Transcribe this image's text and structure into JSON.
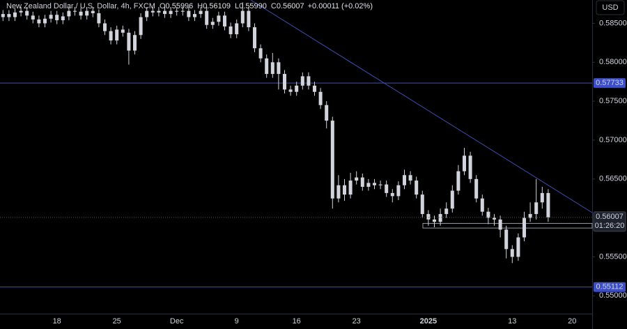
{
  "chart_data": {
    "type": "candlestick",
    "symbol": "New Zealand Dollar / U.S. Dollar, 4h, FXCM",
    "ohlc_legend": [
      {
        "key": "O",
        "value": "0.55996"
      },
      {
        "key": "H",
        "value": "0.56109"
      },
      {
        "key": "L",
        "value": "0.55990"
      },
      {
        "key": "C",
        "value": "0.56007"
      }
    ],
    "change": "+0.00011 (+0.02%)",
    "currency": "USD",
    "color": "#d1d4dc",
    "categories": [
      null,
      null,
      null,
      null,
      null,
      null,
      null,
      null,
      null,
      "18",
      null,
      null,
      null,
      null,
      null,
      null,
      null,
      null,
      null,
      "25",
      null,
      null,
      null,
      null,
      null,
      null,
      null,
      null,
      null,
      "Dec",
      null,
      null,
      null,
      null,
      null,
      null,
      null,
      null,
      null,
      "9",
      null,
      null,
      null,
      null,
      null,
      null,
      null,
      null,
      null,
      "16",
      null,
      null,
      null,
      null,
      null,
      null,
      null,
      null,
      null,
      "23",
      null,
      null,
      null,
      null,
      null,
      null,
      null,
      null,
      null,
      null,
      null,
      "2025",
      null,
      null,
      null,
      null,
      null,
      null,
      null,
      null,
      null,
      null,
      null,
      null,
      null,
      "13",
      null,
      null,
      null,
      null,
      null,
      null,
      null,
      null,
      null,
      "20"
    ],
    "open": [
      0.5858,
      0.5862,
      0.5858,
      0.5864,
      0.5866,
      0.586,
      0.5855,
      0.585,
      0.5856,
      0.5861,
      0.5854,
      0.5859,
      0.5866,
      0.5865,
      0.586,
      0.5866,
      0.5863,
      0.585,
      0.584,
      0.5828,
      0.5842,
      0.5838,
      0.5815,
      0.5835,
      0.5858,
      0.5866,
      0.5864,
      0.5866,
      0.5862,
      0.5866,
      0.5865,
      0.5866,
      0.5858,
      0.5862,
      0.5866,
      0.5848,
      0.5852,
      0.586,
      0.5846,
      0.5836,
      0.585,
      0.5866,
      0.5845,
      0.5818,
      0.5805,
      0.5785,
      0.58,
      0.5785,
      0.5765,
      0.5762,
      0.577,
      0.5782,
      0.577,
      0.5762,
      0.5745,
      0.5725,
      0.5625,
      0.5642,
      0.563,
      0.5648,
      0.5652,
      0.564,
      0.5645,
      0.5642,
      0.5643,
      0.5632,
      0.5628,
      0.5642,
      0.5655,
      0.5648,
      0.563,
      0.5605,
      0.5598,
      0.5595,
      0.5605,
      0.5612,
      0.5635,
      0.566,
      0.568,
      0.565,
      0.5625,
      0.5608,
      0.56,
      0.5598,
      0.5585,
      0.556,
      0.555,
      0.5575,
      0.56,
      0.5605,
      0.562,
      0.5632,
      null,
      null,
      null,
      null
    ],
    "high": [
      0.5867,
      0.5867,
      0.5869,
      0.5871,
      0.5871,
      0.5865,
      0.586,
      0.5861,
      0.5866,
      0.5866,
      0.5864,
      0.5871,
      0.5871,
      0.587,
      0.5871,
      0.5871,
      0.5868,
      0.5855,
      0.5845,
      0.5847,
      0.5847,
      0.5843,
      0.584,
      0.5863,
      0.5871,
      0.5871,
      0.5871,
      0.5871,
      0.5871,
      0.5871,
      0.5871,
      0.5871,
      0.5867,
      0.5871,
      0.5871,
      0.5857,
      0.5865,
      0.5865,
      0.5851,
      0.5855,
      0.5877,
      0.5871,
      0.585,
      0.5823,
      0.581,
      0.5812,
      0.5805,
      0.579,
      0.577,
      0.5775,
      0.5787,
      0.5787,
      0.5775,
      0.5767,
      0.575,
      0.573,
      0.5655,
      0.565,
      0.5658,
      0.566,
      0.5657,
      0.565,
      0.565,
      0.5648,
      0.5648,
      0.5637,
      0.5647,
      0.5662,
      0.566,
      0.5653,
      0.5635,
      0.561,
      0.5603,
      0.5612,
      0.562,
      0.5642,
      0.5668,
      0.569,
      0.5685,
      0.5655,
      0.563,
      0.5613,
      0.5605,
      0.5603,
      0.559,
      0.5565,
      0.558,
      0.5608,
      0.562,
      0.565,
      0.564,
      0.5637,
      null,
      null,
      null,
      null
    ],
    "low": [
      0.5853,
      0.5853,
      0.5853,
      0.5859,
      0.5855,
      0.585,
      0.5845,
      0.5845,
      0.5851,
      0.5849,
      0.5849,
      0.5854,
      0.586,
      0.5855,
      0.5855,
      0.5858,
      0.5845,
      0.5835,
      0.5823,
      0.5823,
      0.5833,
      0.5797,
      0.581,
      0.583,
      0.5853,
      0.5859,
      0.5859,
      0.5857,
      0.5857,
      0.586,
      0.586,
      0.5853,
      0.5853,
      0.5857,
      0.5843,
      0.5843,
      0.5847,
      0.5841,
      0.5831,
      0.5831,
      0.5845,
      0.584,
      0.5813,
      0.58,
      0.578,
      0.578,
      0.5765,
      0.576,
      0.5757,
      0.5757,
      0.5765,
      0.5765,
      0.5757,
      0.574,
      0.5715,
      0.5612,
      0.562,
      0.5622,
      0.5625,
      0.5643,
      0.5635,
      0.5635,
      0.5637,
      0.5637,
      0.5627,
      0.562,
      0.5623,
      0.5637,
      0.5643,
      0.5625,
      0.56,
      0.559,
      0.5588,
      0.559,
      0.56,
      0.5607,
      0.563,
      0.5655,
      0.5645,
      0.562,
      0.5603,
      0.5592,
      0.559,
      0.5575,
      0.5548,
      0.5542,
      0.5545,
      0.557,
      0.5595,
      0.5598,
      0.5612,
      0.5595,
      null,
      null,
      null,
      null
    ],
    "close": [
      0.5862,
      0.5858,
      0.5864,
      0.5866,
      0.586,
      0.5855,
      0.585,
      0.5856,
      0.5861,
      0.5854,
      0.5859,
      0.5866,
      0.5865,
      0.586,
      0.5866,
      0.5863,
      0.585,
      0.584,
      0.5828,
      0.5842,
      0.5838,
      0.5815,
      0.5835,
      0.5858,
      0.5866,
      0.5864,
      0.5866,
      0.5862,
      0.5866,
      0.5865,
      0.5866,
      0.5858,
      0.5862,
      0.5866,
      0.5848,
      0.5852,
      0.586,
      0.5846,
      0.5836,
      0.585,
      0.5866,
      0.5845,
      0.5818,
      0.5805,
      0.5785,
      0.58,
      0.5785,
      0.5765,
      0.5762,
      0.577,
      0.5782,
      0.577,
      0.5762,
      0.5745,
      0.5725,
      0.5625,
      0.5642,
      0.563,
      0.5648,
      0.5652,
      0.564,
      0.5645,
      0.5642,
      0.5643,
      0.5632,
      0.5628,
      0.5642,
      0.5655,
      0.5648,
      0.563,
      0.5605,
      0.5598,
      0.5595,
      0.5605,
      0.5612,
      0.5635,
      0.566,
      0.568,
      0.565,
      0.5625,
      0.5608,
      0.56,
      0.5598,
      0.5585,
      0.556,
      0.555,
      0.5575,
      0.56,
      0.5605,
      0.562,
      0.5632,
      0.56007,
      null,
      null,
      null,
      null
    ],
    "ylim": [
      0.5477,
      0.588
    ],
    "yticks": [
      {
        "value": 0.585,
        "label": "0.58500"
      },
      {
        "value": 0.58,
        "label": "0.58000"
      },
      {
        "value": 0.575,
        "label": "0.57500"
      },
      {
        "value": 0.57,
        "label": "0.57000"
      },
      {
        "value": 0.565,
        "label": "0.56500"
      },
      {
        "value": 0.555,
        "label": "0.55500"
      },
      {
        "value": 0.55,
        "label": "0.55000"
      }
    ],
    "price_lines": [
      {
        "value": 0.57733,
        "label": "0.57733",
        "color": "#3d4fc7"
      },
      {
        "value": 0.55112,
        "label": "0.55112",
        "color": "#3d4fc7"
      }
    ],
    "last_price": {
      "value": 0.56007,
      "label": "0.56007",
      "countdown": "01:26:20"
    },
    "zone": {
      "low": 0.5587,
      "high": 0.5593
    }
  }
}
